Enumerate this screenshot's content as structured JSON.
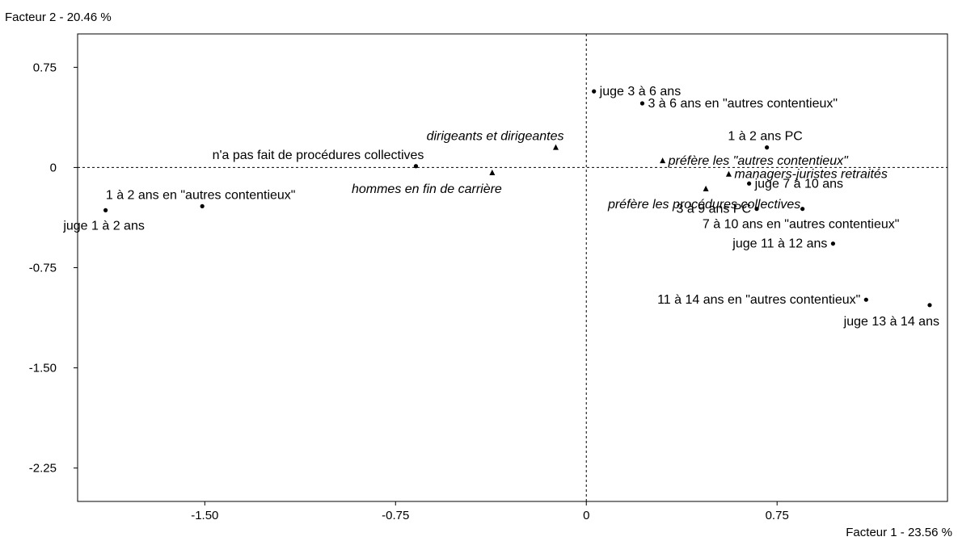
{
  "chart_data": {
    "type": "scatter",
    "xlabel": "Facteur 1  -  23.56 %",
    "ylabel": "Facteur 2  -  20.46 %",
    "xlim": [
      -2.0,
      1.42
    ],
    "ylim": [
      -2.5,
      1.0
    ],
    "xticks": [
      {
        "value": -1.5,
        "label": "-1.50"
      },
      {
        "value": -0.75,
        "label": "-0.75"
      },
      {
        "value": 0,
        "label": "0"
      },
      {
        "value": 0.75,
        "label": "0.75"
      }
    ],
    "yticks": [
      {
        "value": 0.75,
        "label": "0.75"
      },
      {
        "value": 0,
        "label": "0"
      },
      {
        "value": -0.75,
        "label": "-0.75"
      },
      {
        "value": -1.5,
        "label": "-1.50"
      },
      {
        "value": -2.25,
        "label": "-2.25"
      }
    ],
    "reference_lines": {
      "x": 0,
      "y": 0,
      "style": "dashed"
    },
    "grid": false,
    "points": [
      {
        "label": "juge 3 à 6 ans",
        "x": 0.03,
        "y": 0.57,
        "marker": "dot",
        "italic": false,
        "pos": "right"
      },
      {
        "label": "3 à 6 ans en \"autres contentieux\"",
        "x": 0.22,
        "y": 0.48,
        "marker": "dot",
        "italic": false,
        "pos": "right"
      },
      {
        "label": "1 à 2 ans PC",
        "x": 0.71,
        "y": 0.15,
        "marker": "dot",
        "italic": false,
        "pos": "above"
      },
      {
        "label": "dirigeants et dirigeantes",
        "x": -0.12,
        "y": 0.15,
        "marker": "triangle",
        "italic": true,
        "pos": "above-left"
      },
      {
        "label": "préfère les \"autres contentieux\"",
        "x": 0.3,
        "y": 0.05,
        "marker": "triangle",
        "italic": true,
        "pos": "right"
      },
      {
        "label": "n'a pas fait de procédures collectives",
        "x": -0.67,
        "y": 0.01,
        "marker": "dot",
        "italic": false,
        "pos": "above-left"
      },
      {
        "label": "hommes en fin de carrière",
        "x": -0.37,
        "y": -0.04,
        "marker": "triangle",
        "italic": true,
        "pos": "below-left"
      },
      {
        "label": "managers-juristes retraités",
        "x": 0.56,
        "y": -0.05,
        "marker": "triangle",
        "italic": true,
        "pos": "right"
      },
      {
        "label": "juge 7 à 10 ans",
        "x": 0.64,
        "y": -0.12,
        "marker": "dot",
        "italic": false,
        "pos": "right"
      },
      {
        "label": "préfère les procédures collectives",
        "x": 0.47,
        "y": -0.16,
        "marker": "triangle",
        "italic": true,
        "pos": "below"
      },
      {
        "label": "1 à 2 ans en \"autres contentieux\"",
        "x": -1.51,
        "y": -0.29,
        "marker": "dot",
        "italic": false,
        "pos": "above"
      },
      {
        "label": "juge 1 à 2 ans",
        "x": -1.89,
        "y": -0.32,
        "marker": "dot",
        "italic": false,
        "pos": "below"
      },
      {
        "label": "3 à 9 ans PC",
        "x": 0.67,
        "y": -0.31,
        "marker": "dot",
        "italic": false,
        "pos": "left"
      },
      {
        "label": "7 à 10 ans en \"autres contentieux\"",
        "x": 0.85,
        "y": -0.31,
        "marker": "dot",
        "italic": false,
        "pos": "below"
      },
      {
        "label": "juge 11 à 12 ans",
        "x": 0.97,
        "y": -0.57,
        "marker": "dot",
        "italic": false,
        "pos": "left"
      },
      {
        "label": "11 à 14 ans en \"autres contentieux\"",
        "x": 1.1,
        "y": -0.99,
        "marker": "dot",
        "italic": false,
        "pos": "left"
      },
      {
        "label": "juge 13 à 14 ans",
        "x": 1.35,
        "y": -1.03,
        "marker": "dot",
        "italic": false,
        "pos": "below-left"
      }
    ]
  }
}
